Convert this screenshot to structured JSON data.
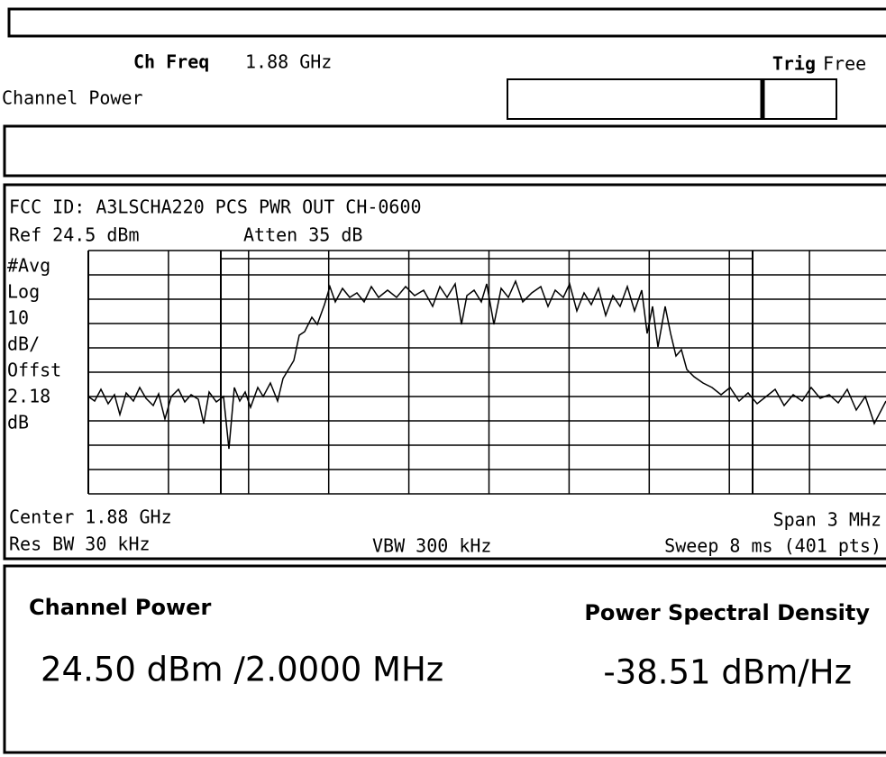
{
  "header": {
    "ch_freq_label": "Ch Freq",
    "ch_freq_value": "1.88 GHz",
    "trig_label": "Trig",
    "trig_value": "Free",
    "mode": "Channel Power"
  },
  "trace": {
    "title": "FCC ID: A3LSCHA220 PCS PWR OUT CH-0600",
    "ref": "Ref 24.5 dBm",
    "atten": "Atten 35 dB",
    "scale_labels": [
      "#Avg",
      "Log",
      "10",
      "dB/",
      "Offst",
      "2.18",
      "dB"
    ],
    "center": "Center 1.88 GHz",
    "span": "Span 3 MHz",
    "res_bw": "Res BW 30 kHz",
    "vbw": "VBW 300 kHz",
    "sweep": "Sweep 8 ms (401 pts)"
  },
  "results": {
    "channel_power_label": "Channel Power",
    "channel_power_value": "24.50 dBm /2.0000 MHz",
    "psd_label": "Power Spectral Density",
    "psd_value": "-38.51 dBm/Hz"
  }
}
